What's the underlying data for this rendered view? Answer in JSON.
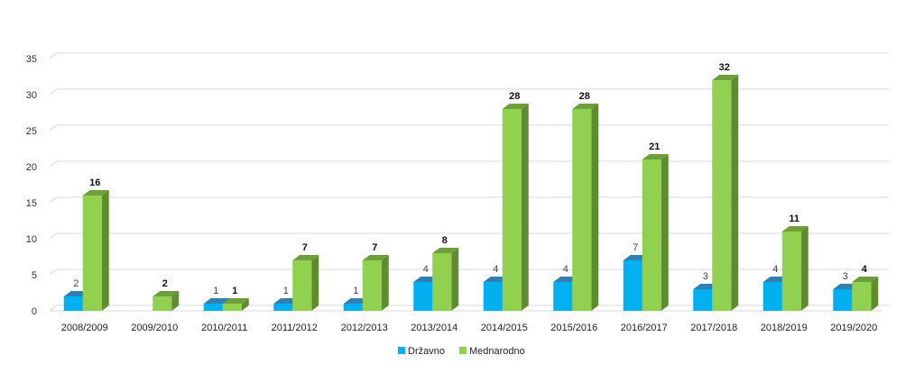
{
  "chart_data": {
    "type": "bar",
    "categories": [
      "2008/2009",
      "2009/2010",
      "2010/2011",
      "2011/2012",
      "2012/2013",
      "2013/2014",
      "2014/2015",
      "2015/2016",
      "2016/2017",
      "2017/2018",
      "2018/2019",
      "2019/2020"
    ],
    "series": [
      {
        "name": "Državno",
        "values": [
          2,
          null,
          1,
          1,
          1,
          4,
          4,
          4,
          7,
          3,
          4,
          3
        ],
        "color": "#00b0f0",
        "side_color": "#0077a8",
        "top_color": "#2f7fb0"
      },
      {
        "name": "Mednarodno",
        "values": [
          16,
          2,
          1,
          7,
          7,
          8,
          28,
          28,
          21,
          32,
          11,
          4
        ],
        "color": "#92d050",
        "side_color": "#5f8c2e",
        "top_color": "#6f9e3c"
      }
    ],
    "title": "",
    "xlabel": "",
    "ylabel": "",
    "ylim": [
      0,
      35
    ],
    "yticks": [
      0,
      5,
      10,
      15,
      20,
      25,
      30,
      35
    ],
    "grid": true,
    "legend_position": "bottom-center",
    "data_labels": true
  }
}
